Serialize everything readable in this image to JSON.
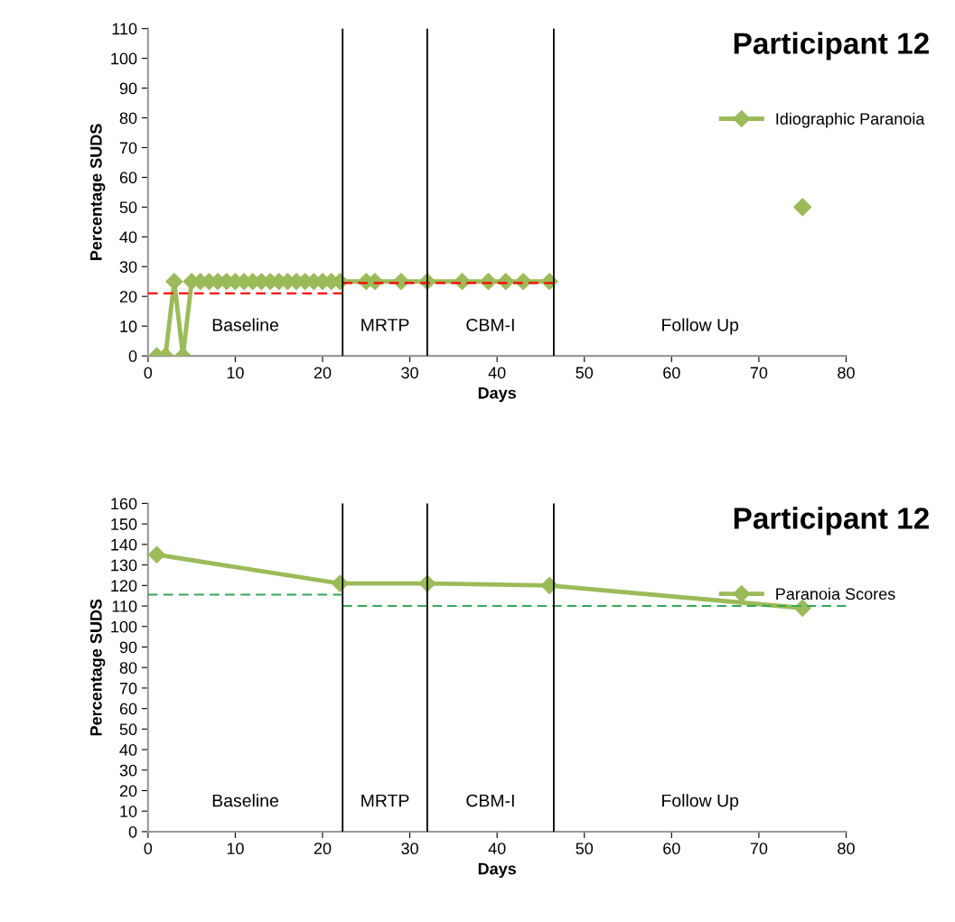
{
  "chart_data": [
    {
      "type": "line",
      "title": "Participant 12",
      "xlabel": "Days",
      "ylabel": "Percentage SUDS",
      "xlim": [
        0,
        80
      ],
      "xticks": [
        0,
        10,
        20,
        30,
        40,
        50,
        60,
        70,
        80
      ],
      "ylim": [
        0,
        110
      ],
      "yticks": [
        0,
        10,
        20,
        30,
        40,
        50,
        60,
        70,
        80,
        90,
        100,
        110
      ],
      "grid": false,
      "legend": "right",
      "marker": "diamond",
      "series": [
        {
          "name": "Idiographic Paranoia",
          "color": "#9bbb59",
          "x": [
            1,
            2,
            3,
            4,
            5,
            6,
            7,
            8,
            9,
            10,
            11,
            12,
            13,
            14,
            15,
            16,
            17,
            18,
            19,
            20,
            21,
            22,
            25,
            26,
            29,
            32,
            36,
            39,
            41,
            43,
            46
          ],
          "values": [
            0,
            0,
            25,
            0,
            25,
            25,
            25,
            25,
            25,
            25,
            25,
            25,
            25,
            25,
            25,
            25,
            25,
            25,
            25,
            25,
            25,
            25,
            25,
            25,
            25,
            25,
            25,
            25,
            25,
            25,
            25
          ]
        },
        {
          "type": "scatter",
          "color": "#9bbb59",
          "x": [
            75
          ],
          "values": [
            50
          ]
        },
        {
          "color": "#ff0000",
          "line_style": "dashed",
          "marker": "none",
          "x": [
            0,
            22.3
          ],
          "values": [
            21,
            21
          ]
        },
        {
          "color": "#ff0000",
          "line_style": "dashed",
          "marker": "none",
          "x": [
            22.3,
            46.5
          ],
          "values": [
            24.5,
            24.5
          ]
        }
      ],
      "ref_lines": [
        {
          "axis": "x",
          "value": 22.3,
          "color": "#000000"
        },
        {
          "axis": "x",
          "value": 32,
          "color": "#000000"
        },
        {
          "axis": "x",
          "value": 46.5,
          "color": "#000000"
        }
      ],
      "annotations": [
        "Baseline",
        "MRTP",
        "CBM-I",
        "Follow Up"
      ]
    },
    {
      "type": "line",
      "title": "Participant 12",
      "xlabel": "Days",
      "ylabel": "Percentage SUDS",
      "xlim": [
        0,
        80
      ],
      "xticks": [
        0,
        10,
        20,
        30,
        40,
        50,
        60,
        70,
        80
      ],
      "ylim": [
        0,
        160
      ],
      "yticks": [
        0,
        10,
        20,
        30,
        40,
        50,
        60,
        70,
        80,
        90,
        100,
        110,
        120,
        130,
        140,
        150,
        160
      ],
      "grid": false,
      "legend": "right",
      "marker": "diamond",
      "series": [
        {
          "name": "Paranoia Scores",
          "color": "#9bbb59",
          "x": [
            1,
            22,
            32,
            46,
            75
          ],
          "values": [
            135,
            121,
            121,
            120,
            109
          ]
        },
        {
          "color": "#33aa55",
          "line_style": "dashed",
          "marker": "none",
          "x": [
            0,
            22.3
          ],
          "values": [
            115.5,
            115.5
          ]
        },
        {
          "color": "#33aa55",
          "line_style": "dashed",
          "marker": "none",
          "x": [
            22.3,
            80
          ],
          "values": [
            110,
            110
          ]
        }
      ],
      "ref_lines": [
        {
          "axis": "x",
          "value": 22.3,
          "color": "#000000"
        },
        {
          "axis": "x",
          "value": 32,
          "color": "#000000"
        },
        {
          "axis": "x",
          "value": 46.5,
          "color": "#000000"
        }
      ],
      "annotations": [
        "Baseline",
        "MRTP",
        "CBM-I",
        "Follow Up"
      ]
    }
  ]
}
